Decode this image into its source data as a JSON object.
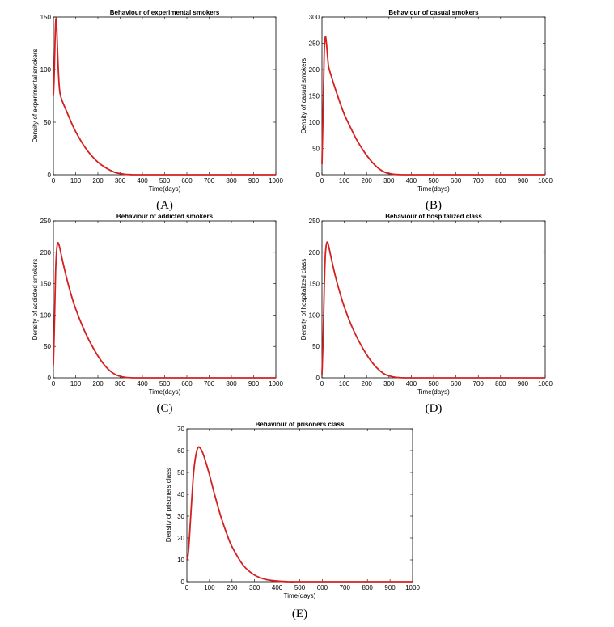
{
  "chart_data": [
    {
      "type": "line",
      "title": "Behaviour of experimental smokers",
      "xlabel": "Time(days)",
      "ylabel": "Density of experimental smokers",
      "caption": "(A)",
      "xlim": [
        0,
        1000
      ],
      "ylim": [
        0,
        150
      ],
      "xticks": [
        "0",
        "100",
        "200",
        "300",
        "400",
        "500",
        "600",
        "700",
        "800",
        "900",
        "1000"
      ],
      "yticks": [
        "0",
        "50",
        "100",
        "150"
      ],
      "color": "#d42020",
      "x": [
        0,
        3,
        6,
        9,
        12,
        15,
        20,
        25,
        30,
        40,
        60,
        80,
        100,
        130,
        160,
        200,
        240,
        280,
        320,
        340,
        360,
        400,
        500,
        600,
        700,
        800,
        900,
        1000
      ],
      "y": [
        75,
        90,
        115,
        140,
        149,
        140,
        110,
        88,
        77,
        70,
        60,
        50,
        41,
        30,
        21,
        12,
        6,
        2,
        0.5,
        0.2,
        0,
        0,
        0,
        0,
        0,
        0,
        0,
        0
      ]
    },
    {
      "type": "line",
      "title": "Behaviour of casual smokers",
      "xlabel": "Time(days)",
      "ylabel": "Density of casual smokers",
      "caption": "(B)",
      "xlim": [
        0,
        1000
      ],
      "ylim": [
        0,
        300
      ],
      "xticks": [
        "0",
        "100",
        "200",
        "300",
        "400",
        "500",
        "600",
        "700",
        "800",
        "900",
        "1000"
      ],
      "yticks": [
        "0",
        "50",
        "100",
        "150",
        "200",
        "250",
        "300"
      ],
      "color": "#d42020",
      "x": [
        0,
        5,
        10,
        15,
        20,
        25,
        30,
        40,
        60,
        80,
        100,
        130,
        160,
        200,
        240,
        280,
        320,
        350,
        380,
        400,
        500,
        600,
        700,
        800,
        900,
        1000
      ],
      "y": [
        20,
        120,
        230,
        262,
        250,
        225,
        205,
        190,
        163,
        138,
        115,
        88,
        63,
        37,
        17,
        5,
        1,
        0.2,
        0,
        0,
        0,
        0,
        0,
        0,
        0,
        0
      ]
    },
    {
      "type": "line",
      "title": "Behaviour of addicted smokers",
      "xlabel": "Time(days)",
      "ylabel": "Density of addicted smokers",
      "caption": "(C)",
      "xlim": [
        0,
        1000
      ],
      "ylim": [
        0,
        250
      ],
      "xticks": [
        "0",
        "100",
        "200",
        "300",
        "400",
        "500",
        "600",
        "700",
        "800",
        "900",
        "1000"
      ],
      "yticks": [
        "0",
        "50",
        "100",
        "150",
        "200",
        "250"
      ],
      "color": "#d42020",
      "x": [
        0,
        5,
        10,
        15,
        20,
        25,
        30,
        40,
        60,
        80,
        100,
        130,
        160,
        200,
        240,
        280,
        320,
        350,
        380,
        400,
        500,
        600,
        700,
        800,
        900,
        1000
      ],
      "y": [
        20,
        90,
        170,
        205,
        215,
        212,
        205,
        188,
        158,
        132,
        110,
        83,
        60,
        35,
        16,
        5,
        1,
        0.2,
        0,
        0,
        0,
        0,
        0,
        0,
        0,
        0
      ]
    },
    {
      "type": "line",
      "title": "Behaviour of hospitalized class",
      "xlabel": "Time(days)",
      "ylabel": "Density of hospitalized class",
      "caption": "(D)",
      "xlim": [
        0,
        1000
      ],
      "ylim": [
        0,
        250
      ],
      "xticks": [
        "0",
        "100",
        "200",
        "300",
        "400",
        "500",
        "600",
        "700",
        "800",
        "900",
        "1000"
      ],
      "yticks": [
        "0",
        "50",
        "100",
        "150",
        "200",
        "250"
      ],
      "color": "#d42020",
      "x": [
        0,
        5,
        10,
        15,
        20,
        25,
        30,
        40,
        60,
        80,
        100,
        130,
        160,
        200,
        240,
        280,
        320,
        350,
        380,
        400,
        500,
        600,
        700,
        800,
        900,
        1000
      ],
      "y": [
        5,
        60,
        140,
        195,
        213,
        216,
        210,
        193,
        162,
        136,
        113,
        85,
        62,
        37,
        18,
        6,
        1.5,
        0.3,
        0,
        0,
        0,
        0,
        0,
        0,
        0,
        0
      ]
    },
    {
      "type": "line",
      "title": "Behaviour of prisoners class",
      "xlabel": "Time(days)",
      "ylabel": "Density of prisoners class",
      "caption": "(E)",
      "xlim": [
        0,
        1000
      ],
      "ylim": [
        0,
        70
      ],
      "xticks": [
        "0",
        "100",
        "200",
        "300",
        "400",
        "500",
        "600",
        "700",
        "800",
        "900",
        "1000"
      ],
      "yticks": [
        "0",
        "10",
        "20",
        "30",
        "40",
        "50",
        "60",
        "70"
      ],
      "color": "#d42020",
      "x": [
        0,
        5,
        10,
        20,
        30,
        40,
        50,
        60,
        70,
        80,
        100,
        120,
        150,
        180,
        200,
        250,
        300,
        350,
        400,
        450,
        500,
        600,
        700,
        800,
        900,
        1000
      ],
      "y": [
        10,
        12,
        18,
        35,
        50,
        58,
        61.5,
        61,
        59,
        56,
        49,
        41,
        30,
        21,
        16,
        7.5,
        3,
        1,
        0.3,
        0,
        0,
        0,
        0,
        0,
        0,
        0
      ]
    }
  ]
}
